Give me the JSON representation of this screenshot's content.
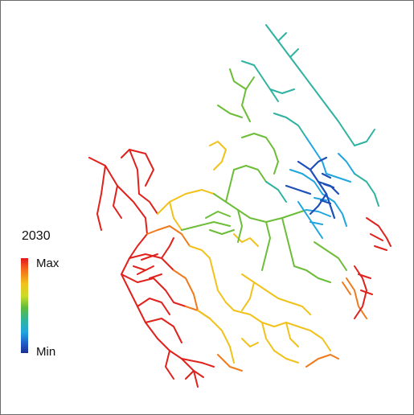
{
  "legend": {
    "title": "2030",
    "max_label": "Max",
    "min_label": "Min"
  },
  "colors": {
    "max": "#e3161b",
    "orange": "#f36b1b",
    "yellow": "#f2c21c",
    "yellow_green": "#c9dc2a",
    "green": "#5fbb3b",
    "teal": "#2fb3a0",
    "light_blue": "#1fa6df",
    "blue": "#1e5cc8",
    "min": "#1c2f91"
  }
}
